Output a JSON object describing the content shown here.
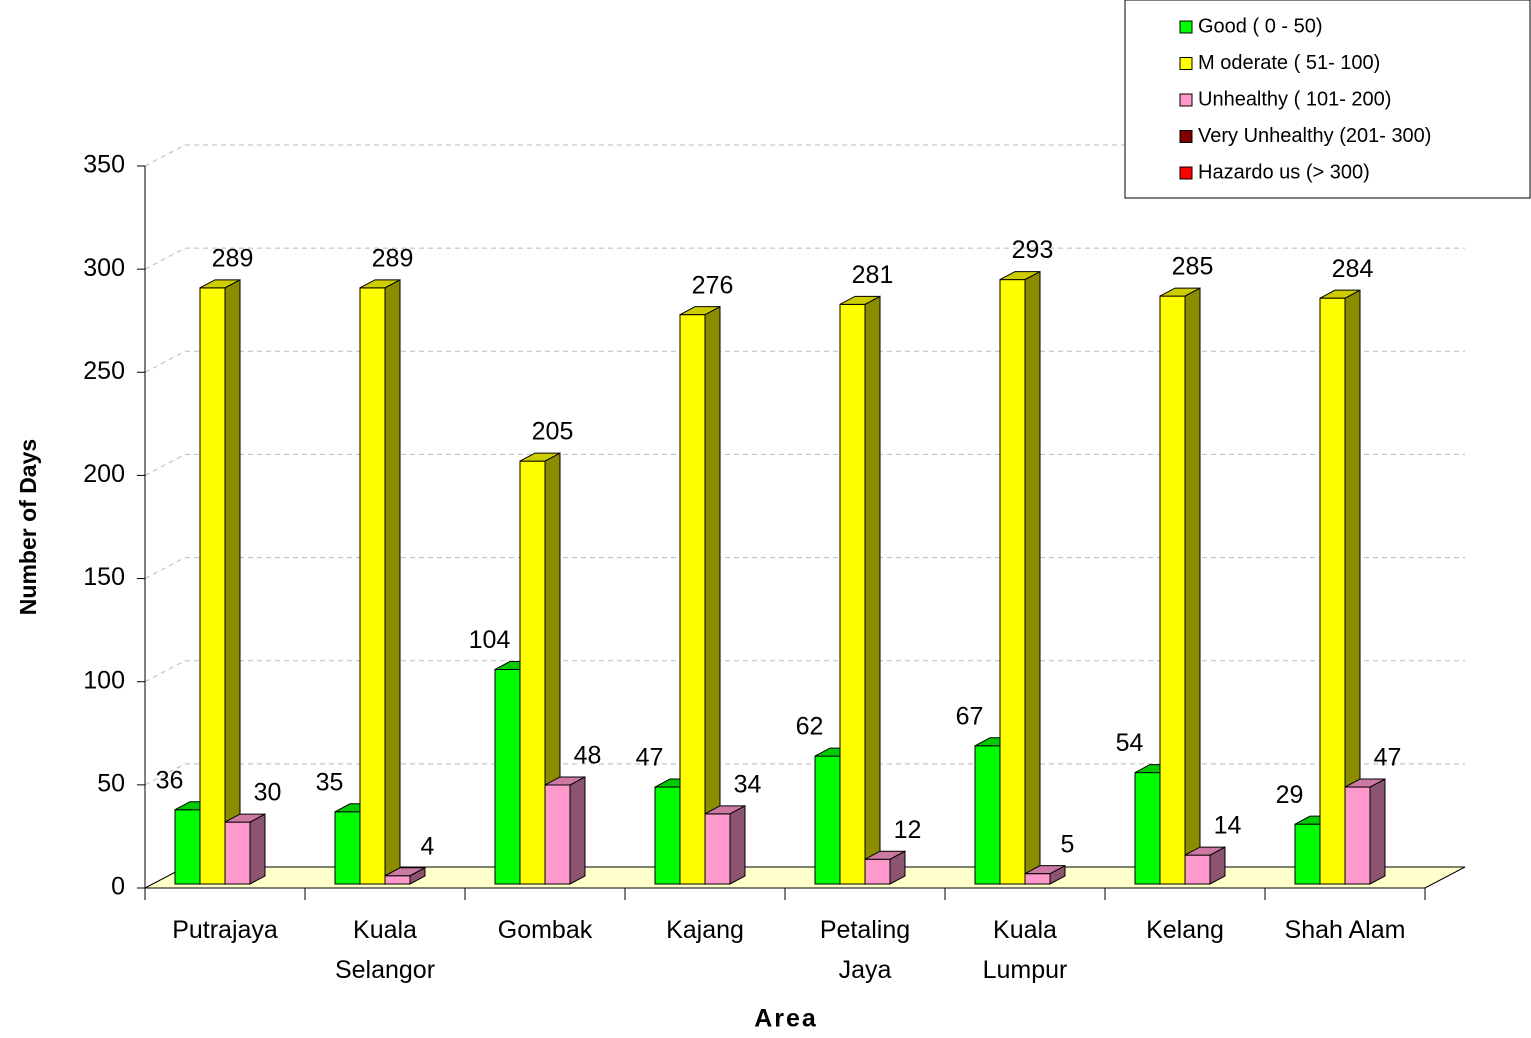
{
  "chart_data": {
    "type": "bar3d",
    "x_label": "Area",
    "y_label": "Number of Days",
    "categories": [
      "Putrajaya",
      "Kuala Selangor",
      "Gombak",
      "Kajang",
      "Petaling Jaya",
      "Kuala Lumpur",
      "Kelang",
      "Shah Alam"
    ],
    "series": [
      {
        "name": "Good  ( 0 - 50)",
        "color": "#00ff00",
        "values": [
          36,
          35,
          104,
          47,
          62,
          67,
          54,
          29
        ]
      },
      {
        "name": "M oderate  ( 51- 100)",
        "color": "#ffff00",
        "values": [
          289,
          289,
          205,
          276,
          281,
          293,
          285,
          284
        ]
      },
      {
        "name": "Unhealthy ( 101- 200)",
        "color": "#ff99cc",
        "values": [
          30,
          4,
          48,
          34,
          12,
          5,
          14,
          47
        ]
      },
      {
        "name": "Very Unhealthy (201- 300)",
        "color": "#800000",
        "values": [
          0,
          0,
          0,
          0,
          0,
          0,
          0,
          0
        ]
      },
      {
        "name": "Hazardo us (> 300)",
        "color": "#ff0000",
        "values": [
          0,
          0,
          0,
          0,
          0,
          0,
          0,
          0
        ]
      }
    ],
    "ylim": [
      0,
      350
    ],
    "yticks": [
      0,
      50,
      100,
      150,
      200,
      250,
      300,
      350
    ],
    "grid": true,
    "legend": "top-right",
    "show_value_labels": [
      true,
      true,
      true,
      false,
      false
    ]
  }
}
